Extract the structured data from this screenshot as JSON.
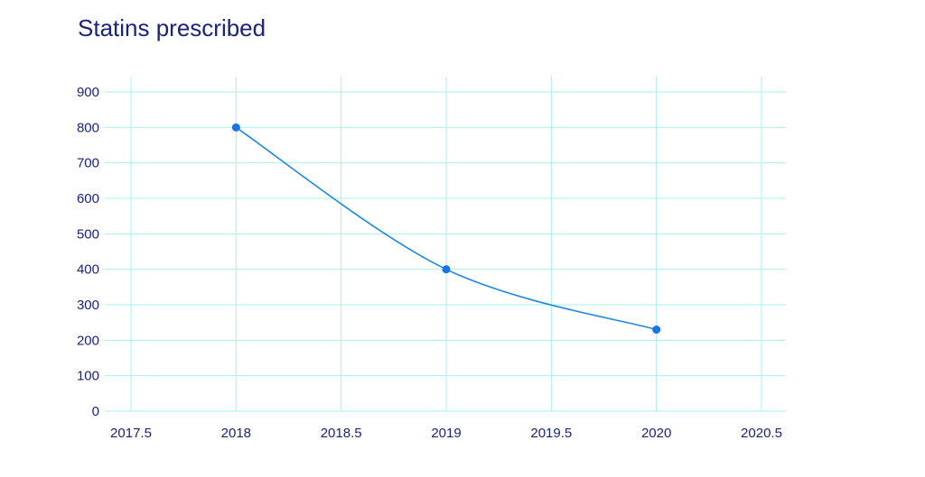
{
  "chart_data": {
    "type": "line",
    "title": "Statins prescribed",
    "xlabel": "",
    "ylabel": "",
    "x": [
      2018,
      2019,
      2020
    ],
    "series": [
      {
        "values": [
          800,
          400,
          230
        ]
      }
    ],
    "xlim": [
      2017.5,
      2020.5
    ],
    "ylim": [
      0,
      900
    ],
    "x_ticks": [
      "2017.5",
      "2018",
      "2018.5",
      "2019",
      "2019.5",
      "2020",
      "2020.5"
    ],
    "y_ticks": [
      "0",
      "100",
      "200",
      "300",
      "400",
      "500",
      "600",
      "700",
      "800",
      "900"
    ],
    "grid": true,
    "legend": "none",
    "smooth": true,
    "colors": {
      "line": "#1e88e5",
      "marker": "#1a73e8",
      "grid": "#a8f0f0",
      "text": "#1a237e"
    }
  }
}
